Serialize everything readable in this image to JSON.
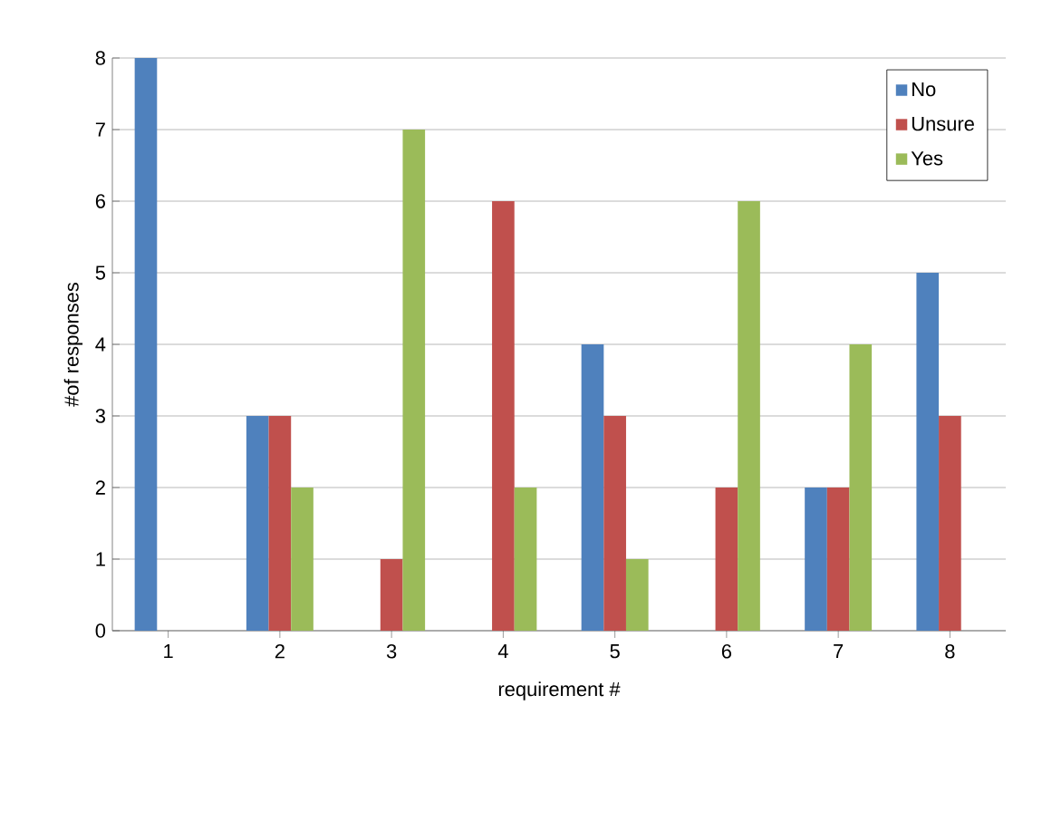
{
  "chart_data": {
    "type": "bar",
    "xlabel": "requirement #",
    "ylabel": "#of responses",
    "categories": [
      "1",
      "2",
      "3",
      "4",
      "5",
      "6",
      "7",
      "8"
    ],
    "series": [
      {
        "name": "No",
        "color": "#4f81bd",
        "values": [
          8,
          3,
          0,
          0,
          4,
          0,
          2,
          5
        ]
      },
      {
        "name": "Unsure",
        "color": "#c0504d",
        "values": [
          0,
          3,
          1,
          6,
          3,
          2,
          2,
          3
        ]
      },
      {
        "name": "Yes",
        "color": "#9bbb59",
        "values": [
          0,
          2,
          7,
          2,
          1,
          6,
          4,
          0
        ]
      }
    ],
    "ylim": [
      0,
      8
    ],
    "yticks": [
      0,
      1,
      2,
      3,
      4,
      5,
      6,
      7,
      8
    ],
    "grid": "y",
    "legend": "top right"
  }
}
